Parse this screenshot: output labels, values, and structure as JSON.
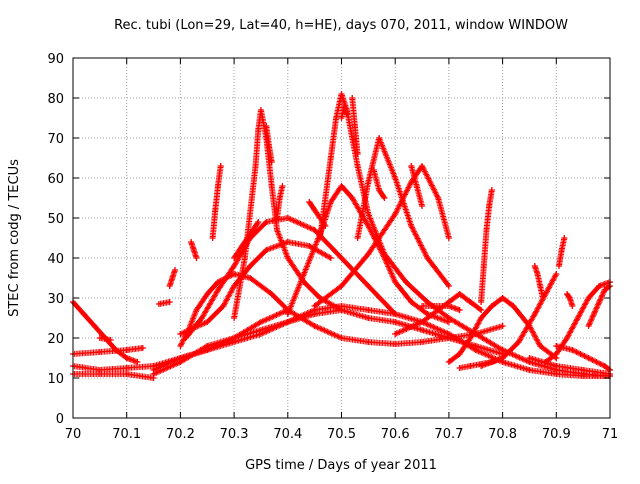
{
  "colors": {
    "series": "#ff0000",
    "grid": "#a0a0a0",
    "frame": "#000000",
    "background": "#ffffff"
  },
  "chart_data": {
    "type": "scatter",
    "title": "Rec. tubi (Lon=29, Lat=40, h=HE), days 070, 2011, window WINDOW",
    "xlabel": "GPS time / Days of year 2011",
    "ylabel": "STEC from codg / TECUs",
    "xlim": [
      70,
      71
    ],
    "ylim": [
      0,
      90
    ],
    "xticks": [
      70,
      70.1,
      70.2,
      70.3,
      70.4,
      70.5,
      70.6,
      70.7,
      70.8,
      70.9,
      71
    ],
    "xtick_labels": [
      "70",
      "70.1",
      "70.2",
      "70.3",
      "70.4",
      "70.5",
      "70.6",
      "70.7",
      "70.8",
      "70.9",
      "71"
    ],
    "yticks": [
      0,
      10,
      20,
      30,
      40,
      50,
      60,
      70,
      80,
      90
    ],
    "ytick_labels": [
      "0",
      "10",
      "20",
      "30",
      "40",
      "50",
      "60",
      "70",
      "80",
      "90"
    ],
    "grid": true,
    "marker": "plus",
    "series": [
      {
        "x": [
          70.0,
          70.02,
          70.04,
          70.06,
          70.08,
          70.1,
          70.12
        ],
        "y": [
          29,
          26,
          23,
          20,
          17,
          15,
          14
        ]
      },
      {
        "x": [
          70.0,
          70.05,
          70.1,
          70.15,
          70.2,
          70.25,
          70.3,
          70.35,
          70.4
        ],
        "y": [
          13,
          12,
          12.5,
          13,
          15,
          17,
          20,
          24,
          27
        ]
      },
      {
        "x": [
          70.0,
          70.05,
          70.1,
          70.15
        ],
        "y": [
          11,
          11,
          11,
          10
        ]
      },
      {
        "x": [
          70.15,
          70.2,
          70.25,
          70.3,
          70.35,
          70.4,
          70.45,
          70.5
        ],
        "y": [
          11,
          14,
          18,
          20,
          22,
          24,
          26,
          27
        ]
      },
      {
        "x": [
          70.0,
          70.05,
          70.1,
          70.13
        ],
        "y": [
          16,
          16.5,
          17,
          17.5
        ]
      },
      {
        "x": [
          70.05,
          70.07
        ],
        "y": [
          20,
          19.5
        ]
      },
      {
        "x": [
          70.15,
          70.2,
          70.25,
          70.3,
          70.35,
          70.4,
          70.45,
          70.5,
          70.55,
          70.6,
          70.65,
          70.7,
          70.75,
          70.8,
          70.85,
          70.9,
          70.95,
          71.0
        ],
        "y": [
          12,
          15,
          17,
          19,
          21,
          24,
          27,
          28,
          27,
          26,
          24,
          21,
          17,
          14,
          12,
          11,
          10.5,
          10.5
        ]
      },
      {
        "x": [
          70.16,
          70.18
        ],
        "y": [
          28.5,
          29
        ]
      },
      {
        "x": [
          70.18,
          70.185,
          70.19
        ],
        "y": [
          33,
          35,
          37
        ]
      },
      {
        "x": [
          70.2,
          70.215,
          70.23,
          70.25,
          70.27,
          70.3,
          70.33,
          70.37,
          70.4,
          70.45,
          70.5,
          70.55,
          70.6,
          70.65,
          70.7,
          70.75,
          70.8
        ],
        "y": [
          18,
          22,
          27,
          31,
          34,
          36,
          35,
          31,
          27,
          23,
          20,
          19,
          18.5,
          19,
          20,
          21,
          23
        ]
      },
      {
        "x": [
          70.22,
          70.225,
          70.23
        ],
        "y": [
          44,
          42,
          40
        ]
      },
      {
        "x": [
          70.2,
          70.25,
          70.28,
          70.3,
          70.33,
          70.36,
          70.4,
          70.44,
          70.48
        ],
        "y": [
          21,
          24,
          28,
          33,
          38,
          42,
          44,
          43,
          40
        ]
      },
      {
        "x": [
          70.26,
          70.265,
          70.27,
          70.275
        ],
        "y": [
          45,
          52,
          58,
          63
        ]
      },
      {
        "x": [
          70.21,
          70.24,
          70.27,
          70.3,
          70.33,
          70.36,
          70.4,
          70.45,
          70.5,
          70.55,
          70.6
        ],
        "y": [
          20,
          25,
          32,
          38,
          45,
          49,
          50,
          47,
          40,
          33,
          26
        ]
      },
      {
        "x": [
          70.3,
          70.315,
          70.33,
          70.345
        ],
        "y": [
          40,
          43,
          46,
          49
        ]
      },
      {
        "x": [
          70.3,
          70.32,
          70.34,
          70.345,
          70.35,
          70.36,
          70.37,
          70.38,
          70.4,
          70.43,
          70.46,
          70.5,
          70.55,
          70.6,
          70.65,
          70.7,
          70.75,
          70.8
        ],
        "y": [
          25,
          40,
          63,
          72,
          77,
          70,
          58,
          47,
          40,
          34,
          30,
          27,
          25,
          24,
          22,
          20,
          18,
          16
        ]
      },
      {
        "x": [
          70.36,
          70.365,
          70.37
        ],
        "y": [
          73,
          68,
          64
        ]
      },
      {
        "x": [
          70.38,
          70.385,
          70.39
        ],
        "y": [
          50,
          55,
          58
        ]
      },
      {
        "x": [
          70.4,
          70.43,
          70.46,
          70.48,
          70.5,
          70.52,
          70.55,
          70.58,
          70.6,
          70.63,
          70.66,
          70.7
        ],
        "y": [
          26,
          36,
          46,
          54,
          58,
          55,
          48,
          40,
          34,
          29,
          26,
          24
        ]
      },
      {
        "x": [
          70.44,
          70.45,
          70.47
        ],
        "y": [
          54,
          52,
          48
        ]
      },
      {
        "x": [
          70.46,
          70.48,
          70.49,
          70.5,
          70.51,
          70.53,
          70.55,
          70.58,
          70.62,
          70.66,
          70.7,
          70.75,
          70.8,
          70.85,
          70.9,
          70.95,
          71.0
        ],
        "y": [
          45,
          65,
          75,
          81,
          77,
          63,
          51,
          41,
          34,
          29,
          25,
          21,
          17,
          14,
          12,
          11,
          10.5
        ]
      },
      {
        "x": [
          70.5,
          70.505,
          70.51
        ],
        "y": [
          75,
          78,
          76
        ]
      },
      {
        "x": [
          70.52,
          70.525,
          70.53
        ],
        "y": [
          80,
          73,
          66
        ]
      },
      {
        "x": [
          70.53,
          70.55,
          70.57,
          70.6,
          70.63,
          70.66,
          70.7
        ],
        "y": [
          45,
          59,
          70,
          60,
          48,
          40,
          33
        ]
      },
      {
        "x": [
          70.56,
          70.57,
          70.58
        ],
        "y": [
          62,
          57,
          55
        ]
      },
      {
        "x": [
          70.45,
          70.5,
          70.55,
          70.6,
          70.63,
          70.65,
          70.68,
          70.7
        ],
        "y": [
          28,
          33,
          41,
          51,
          59,
          63,
          55,
          45
        ]
      },
      {
        "x": [
          70.63,
          70.64,
          70.65
        ],
        "y": [
          63,
          58,
          53
        ]
      },
      {
        "x": [
          70.6,
          70.65,
          70.7,
          70.72,
          70.74,
          70.76
        ],
        "y": [
          21,
          24,
          29,
          31,
          29,
          27
        ]
      },
      {
        "x": [
          70.65,
          70.7,
          70.72
        ],
        "y": [
          28,
          28,
          27
        ]
      },
      {
        "x": [
          70.7,
          70.72,
          70.74,
          70.76,
          70.78,
          70.8,
          70.82,
          70.85,
          70.87,
          70.9
        ],
        "y": [
          14,
          16,
          20,
          25,
          28,
          30,
          28,
          23,
          18,
          15
        ]
      },
      {
        "x": [
          70.76,
          70.765,
          70.77,
          70.775,
          70.78
        ],
        "y": [
          29,
          38,
          47,
          53,
          57
        ]
      },
      {
        "x": [
          70.72,
          70.74,
          70.76,
          70.78,
          70.8
        ],
        "y": [
          12.5,
          13,
          13.5,
          14,
          15
        ]
      },
      {
        "x": [
          70.76,
          70.8,
          70.83,
          70.86,
          70.88,
          70.9
        ],
        "y": [
          13,
          15,
          19,
          26,
          31,
          36
        ]
      },
      {
        "x": [
          70.86,
          70.865,
          70.87,
          70.875
        ],
        "y": [
          38,
          36,
          33,
          30
        ]
      },
      {
        "x": [
          70.88,
          70.9,
          70.92,
          70.94,
          70.96,
          70.98,
          71.0
        ],
        "y": [
          14,
          16,
          20,
          25,
          30,
          33,
          34
        ]
      },
      {
        "x": [
          70.905,
          70.91,
          70.915
        ],
        "y": [
          38,
          42,
          45
        ]
      },
      {
        "x": [
          70.92,
          70.925,
          70.93
        ],
        "y": [
          31,
          30,
          28
        ]
      },
      {
        "x": [
          70.85,
          70.9,
          70.95,
          71.0
        ],
        "y": [
          15,
          13,
          12,
          11
        ]
      },
      {
        "x": [
          70.9,
          70.93,
          70.96,
          70.99,
          71.0
        ],
        "y": [
          18,
          17,
          15,
          13,
          12
        ]
      },
      {
        "x": [
          70.96,
          70.97,
          70.98,
          70.99,
          71.0
        ],
        "y": [
          23,
          26,
          29,
          32,
          33
        ]
      }
    ]
  }
}
